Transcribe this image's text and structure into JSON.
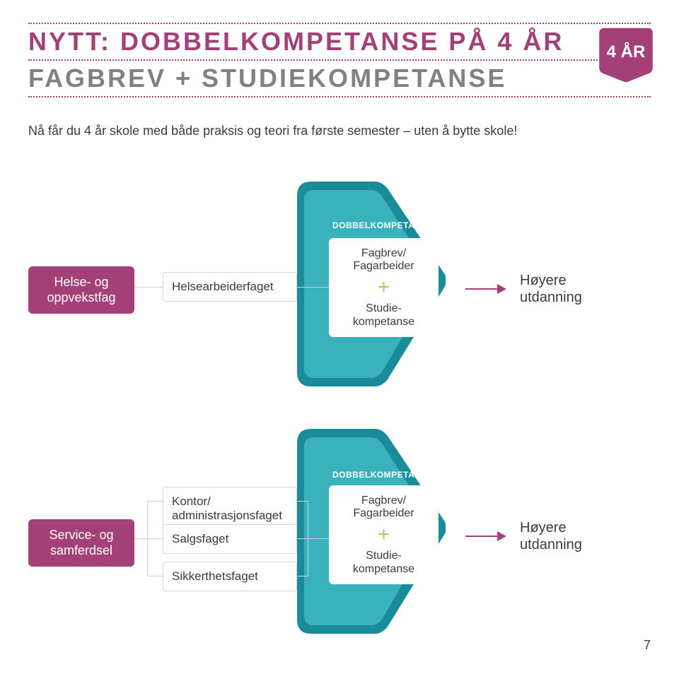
{
  "colors": {
    "magenta": "#a34077",
    "teal_dark": "#1a8c99",
    "teal_light": "#39b2bb",
    "plus": "#a7d260",
    "arrow": "#a34077",
    "grey_text": "#818181",
    "body_text": "#3a3a40",
    "connector": "#cfcfcf",
    "background": "#ffffff"
  },
  "header": {
    "title_line1": "NYTT: DOBBELKOMPETANSE PÅ 4 ÅR",
    "title_line2": "FAGBREV + STUDIEKOMPETANSE",
    "badge": "4 ÅR"
  },
  "intro": "Nå får du 4 år skole med både praksis og teori fra første semester – uten å bytte skole!",
  "diagram": {
    "dk_label": "DOBBELKOMPETANSE",
    "outcome_top": "Fagbrev/\nFagarbeider",
    "outcome_bottom": "Studie-\nkompetanse",
    "result": "Høyere\nutdanning",
    "sections": [
      {
        "pill": "Helse- og\noppvekstfag",
        "mids": [
          "Helsearbeiderfaget"
        ]
      },
      {
        "pill": "Service- og\nsamferdsel",
        "mids": [
          "Kontor/\nadministrasjonsfaget",
          "Salgsfaget",
          "Sikkerthetsfaget"
        ]
      }
    ]
  },
  "page_number": "7",
  "typography": {
    "title_fontsize": 36,
    "title_letter_spacing": 3,
    "intro_fontsize": 18,
    "pill_fontsize": 18,
    "midbox_fontsize": 17,
    "outcome_fontsize": 16,
    "result_fontsize": 20,
    "dk_label_fontsize": 12,
    "badge_fontsize": 24
  }
}
